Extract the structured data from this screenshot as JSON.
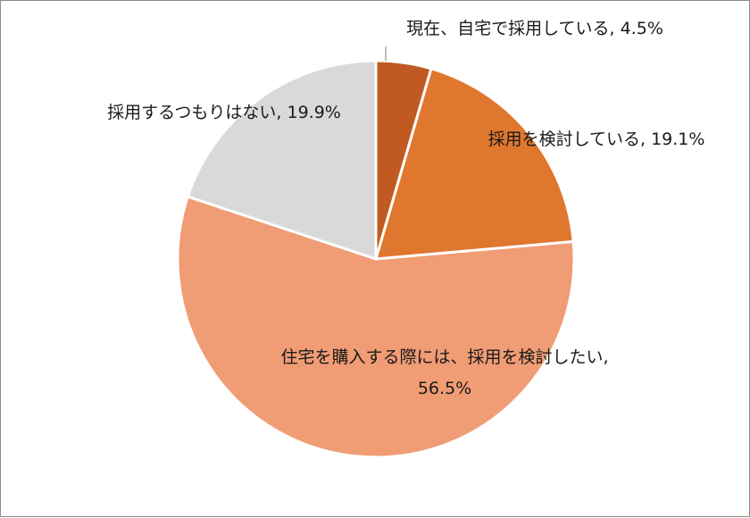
{
  "chart_data": {
    "type": "pie",
    "title": "",
    "legend": "none",
    "slices": [
      {
        "name": "現在、自宅で採用している",
        "value": 4.5,
        "label_lines": [
          "現在、自宅で採用している, 4.5%"
        ],
        "color": "#c05a22"
      },
      {
        "name": "採用を検討している",
        "value": 19.1,
        "label_lines": [
          "採用を検討している, 19.1%"
        ],
        "color": "#e0772e"
      },
      {
        "name": "住宅を購入する際には、採用を検討したい",
        "value": 56.5,
        "label_lines": [
          "住宅を購入する際には、採用を検討したい,",
          "56.5%"
        ],
        "color": "#f09c74"
      },
      {
        "name": "採用するつもりはない",
        "value": 19.9,
        "label_lines": [
          "採用するつもりはない, 19.9%"
        ],
        "color": "#d9d9d9"
      }
    ]
  }
}
